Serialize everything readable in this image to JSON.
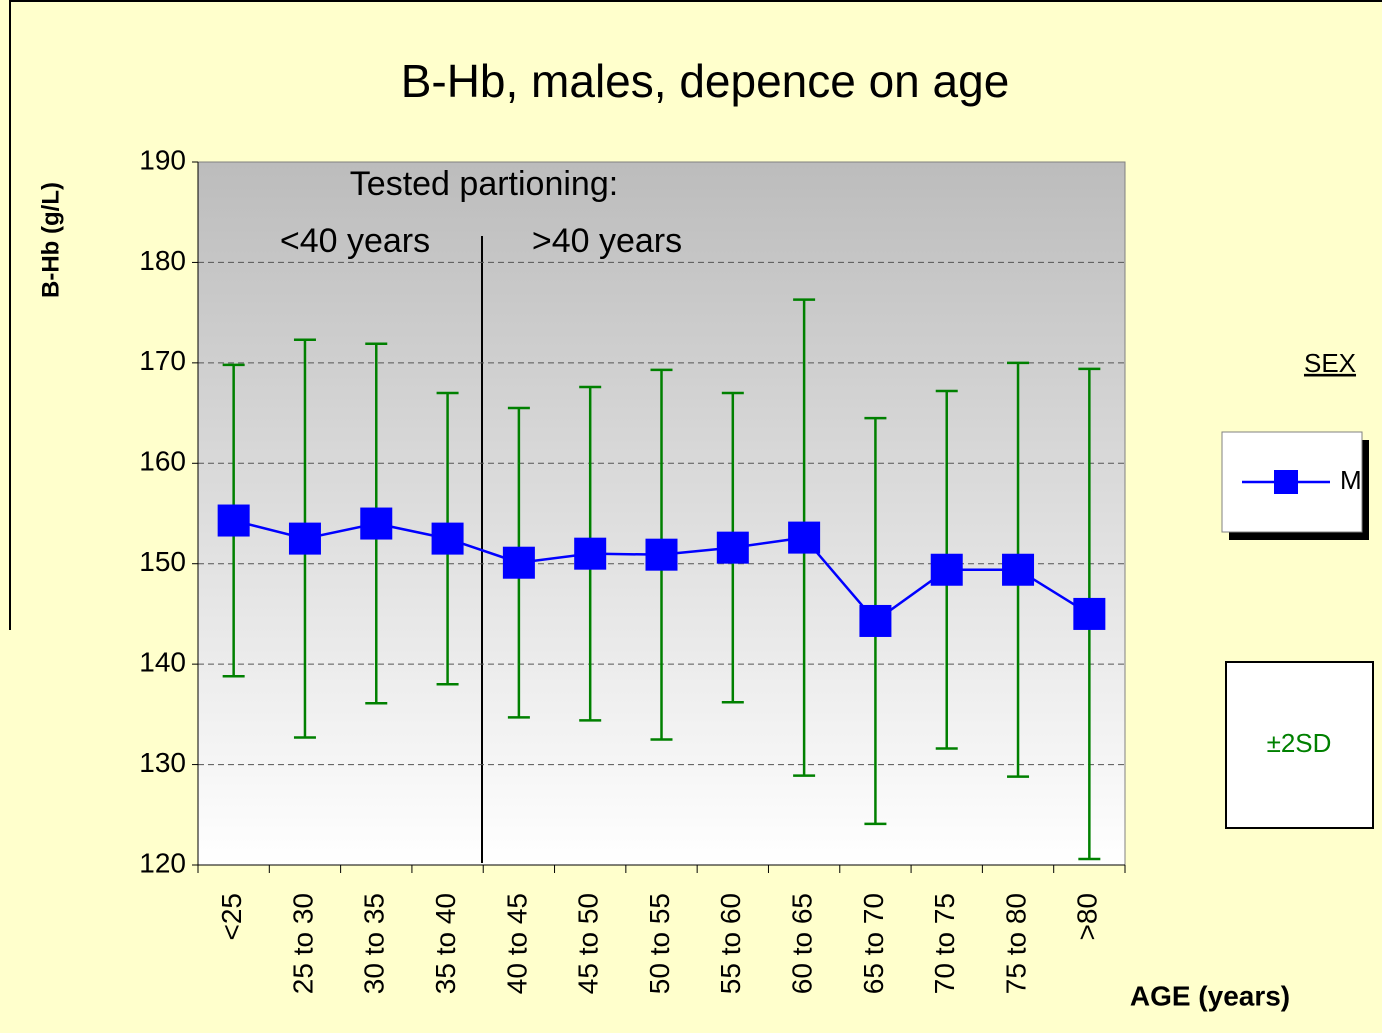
{
  "chart_data": {
    "type": "line",
    "title": "B-Hb, males, depence on age",
    "x_label": "AGE (years)",
    "y_label": "B-Hb (g/L)",
    "annotations": [
      "Tested partioning:",
      "<40 years",
      ">40 years"
    ],
    "categories": [
      "<25",
      "25 to 30",
      "30 to 35",
      "35 to 40",
      "40 to 45",
      "45 to 50",
      "50 to 55",
      "55 to 60",
      "60 to 65",
      "65 to 70",
      "70 to 75",
      "75 to 80",
      ">80"
    ],
    "series": [
      {
        "name": "M",
        "color": "#0000ff",
        "values": [
          154.3,
          152.5,
          154.0,
          152.5,
          150.1,
          151.0,
          150.9,
          151.6,
          152.6,
          144.3,
          149.4,
          149.4,
          145.0
        ],
        "errors": [
          15.5,
          19.8,
          17.9,
          14.5,
          15.4,
          16.6,
          18.4,
          15.4,
          23.7,
          20.2,
          17.8,
          20.6,
          24.4
        ],
        "error_name": "±2SD",
        "error_color": "#008000"
      }
    ],
    "legend_title": "SEX",
    "legend": "right",
    "ylim": [
      120,
      190
    ],
    "yticks": [
      120,
      130,
      140,
      150,
      160,
      170,
      180,
      190
    ],
    "grid": true
  }
}
